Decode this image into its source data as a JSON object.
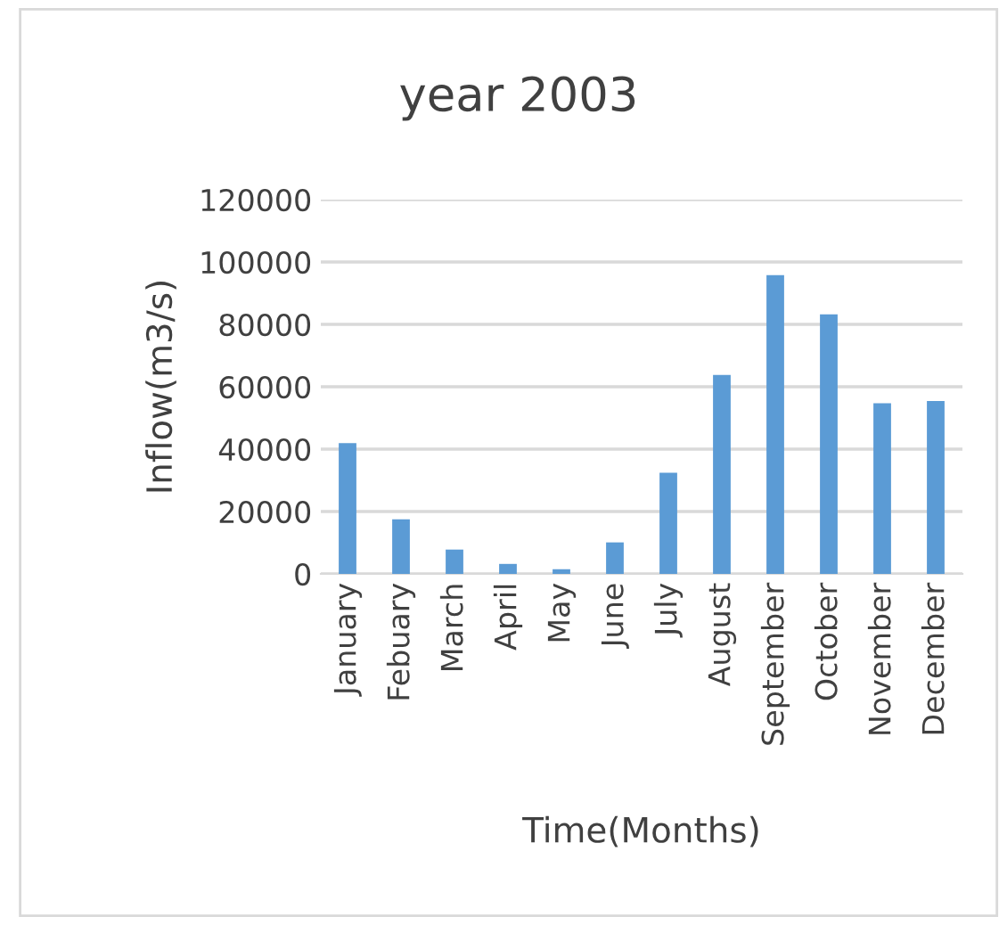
{
  "chart_data": {
    "type": "bar",
    "title": "year 2003",
    "xlabel": "Time(Months)",
    "ylabel": "Inflow(m3/s)",
    "categories": [
      "January",
      "Febuary",
      "March",
      "April",
      "May",
      "June",
      "July",
      "August",
      "September",
      "October",
      "November",
      "December"
    ],
    "values": [
      41900,
      17500,
      7800,
      3200,
      1500,
      10100,
      32400,
      63800,
      95800,
      83200,
      54700,
      55400
    ],
    "color": "#5b9bd5",
    "ylim": [
      0,
      120000
    ],
    "yticks": [
      0,
      20000,
      40000,
      60000,
      80000,
      100000,
      120000
    ],
    "grid": "y",
    "legend": false
  }
}
